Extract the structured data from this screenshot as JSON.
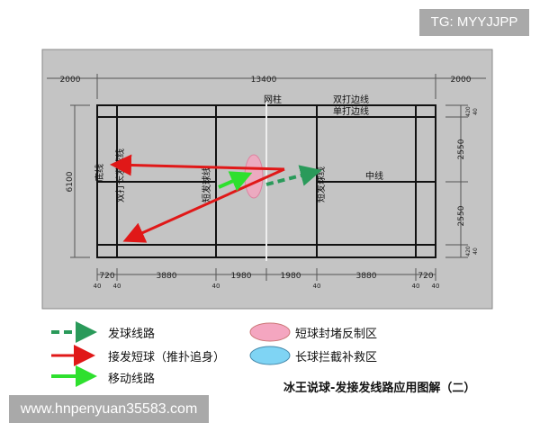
{
  "diagram": {
    "labels": {
      "net_post": "网柱",
      "doubles_sideline": "双打边线",
      "singles_sideline": "单打边线",
      "center_line": "中线",
      "back_line": "底线",
      "doubles_long_service_line": "双打长发球线",
      "short_service_line": "短发球线"
    },
    "dimensions": {
      "top": [
        "2000",
        "13400",
        "2000"
      ],
      "left": "6100",
      "right": [
        "420",
        "40",
        "2550",
        "2550",
        "420",
        "40"
      ],
      "bottom": [
        "720",
        "3880",
        "1980",
        "1980",
        "3880",
        "720"
      ],
      "bottom_small": [
        "40",
        "40",
        "40",
        "40",
        "40",
        "40"
      ]
    },
    "colors": {
      "serve": "#2a9a5a",
      "return": "#e01818",
      "move": "#2ee02e",
      "short_zone": "#f4a6c0",
      "long_zone": "#7fd4f4",
      "background": "#c4c4c4"
    }
  },
  "legend": {
    "serve_route": "发球线路",
    "short_return": "接发短球（推扑追身）",
    "movement_route": "移动线路",
    "short_zone": "短球封堵反制区",
    "long_zone": "长球拦截补救区"
  },
  "caption": "冰王说球-发接发线路应用图解（二）",
  "watermarks": {
    "top": "TG: MYYJJPP",
    "bottom": "www.hnpenyuan35583.com"
  }
}
